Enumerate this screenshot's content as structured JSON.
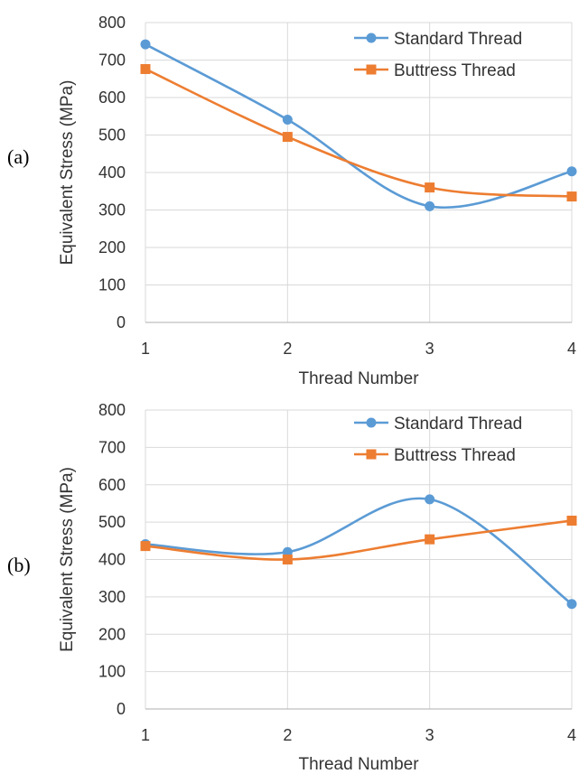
{
  "chart_data": [
    {
      "type": "line",
      "panel_label": "(a)",
      "xlabel": "Thread Number",
      "ylabel": "Equivalent Stress (MPa)",
      "x": [
        1,
        2,
        3,
        4
      ],
      "x_ticks": [
        "1",
        "2",
        "3",
        "4"
      ],
      "ylim": [
        0,
        800
      ],
      "y_ticks": [
        "0",
        "100",
        "200",
        "300",
        "400",
        "500",
        "600",
        "700",
        "800"
      ],
      "grid": true,
      "legend_position": "top-right",
      "series": [
        {
          "name": "Standard Thread",
          "values": [
            742,
            541,
            310,
            403
          ],
          "color": "#5B9BD5",
          "marker": "circle"
        },
        {
          "name": "Buttress Thread",
          "values": [
            676,
            495,
            360,
            336
          ],
          "color": "#ED7D31",
          "marker": "square"
        }
      ]
    },
    {
      "type": "line",
      "panel_label": "(b)",
      "xlabel": "Thread Number",
      "ylabel": "Equivalent Stress (MPa)",
      "x": [
        1,
        2,
        3,
        4
      ],
      "x_ticks": [
        "1",
        "2",
        "3",
        "4"
      ],
      "ylim": [
        0,
        800
      ],
      "y_ticks": [
        "0",
        "100",
        "200",
        "300",
        "400",
        "500",
        "600",
        "700",
        "800"
      ],
      "grid": true,
      "legend_position": "top-right",
      "series": [
        {
          "name": "Standard Thread",
          "values": [
            441,
            420,
            561,
            281
          ],
          "color": "#5B9BD5",
          "marker": "circle"
        },
        {
          "name": "Buttress Thread",
          "values": [
            436,
            400,
            454,
            504
          ],
          "color": "#ED7D31",
          "marker": "square"
        }
      ]
    }
  ]
}
